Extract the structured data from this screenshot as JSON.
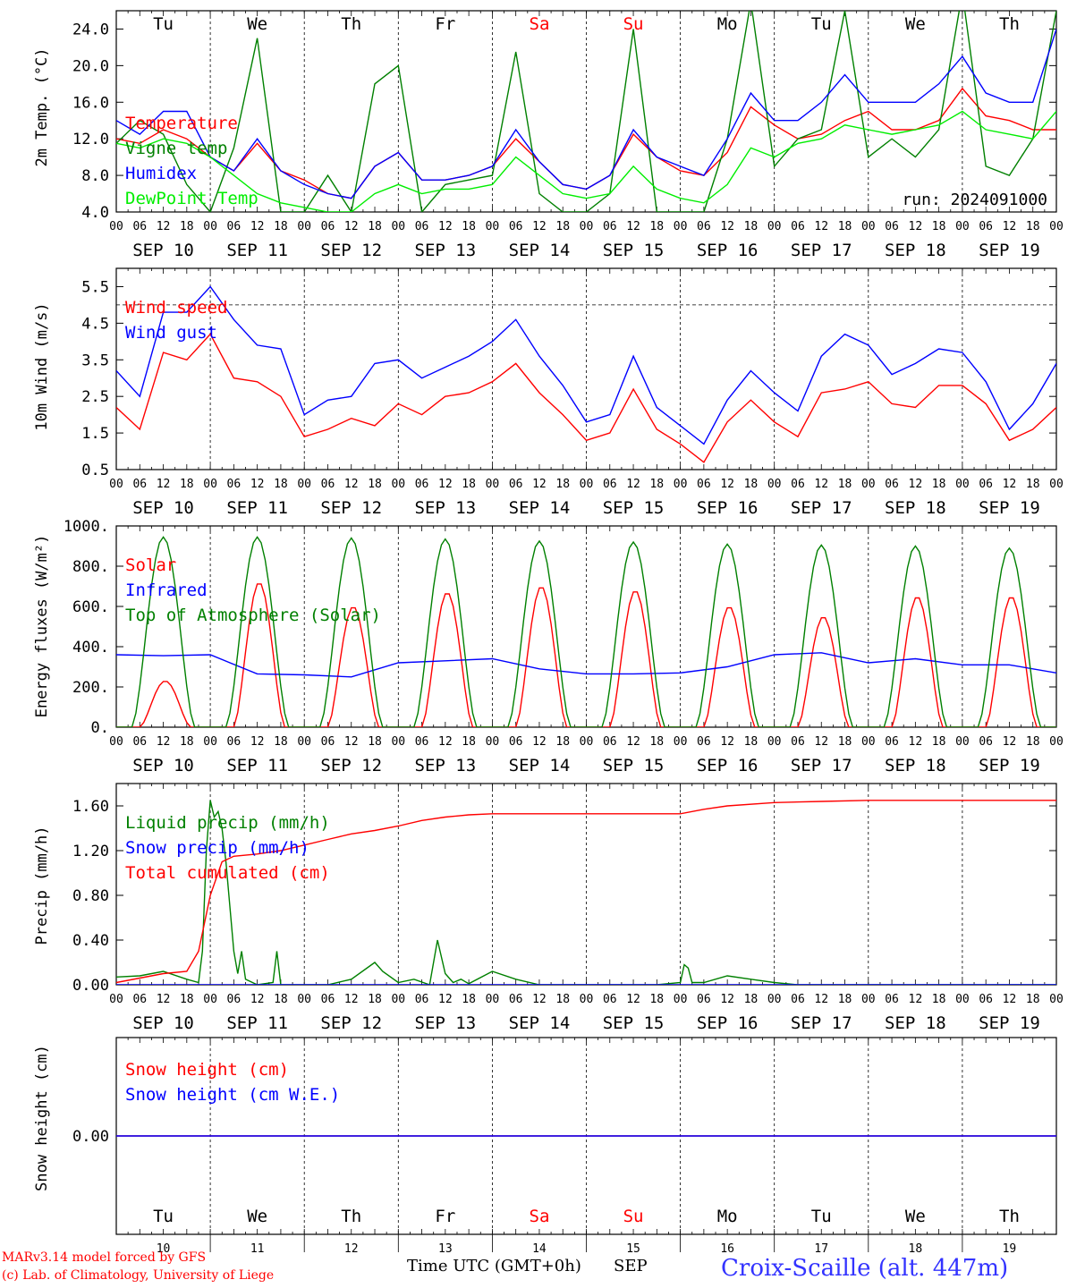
{
  "days": [
    {
      "abbr": "Tu",
      "date": "SEP 10",
      "num": "10",
      "weekend": false
    },
    {
      "abbr": "We",
      "date": "SEP 11",
      "num": "11",
      "weekend": false
    },
    {
      "abbr": "Th",
      "date": "SEP 12",
      "num": "12",
      "weekend": false
    },
    {
      "abbr": "Fr",
      "date": "SEP 13",
      "num": "13",
      "weekend": false
    },
    {
      "abbr": "Sa",
      "date": "SEP 14",
      "num": "14",
      "weekend": true
    },
    {
      "abbr": "Su",
      "date": "SEP 15",
      "num": "15",
      "weekend": true
    },
    {
      "abbr": "Mo",
      "date": "SEP 16",
      "num": "16",
      "weekend": false
    },
    {
      "abbr": "Tu",
      "date": "SEP 17",
      "num": "17",
      "weekend": false
    },
    {
      "abbr": "We",
      "date": "SEP 18",
      "num": "18",
      "weekend": false
    },
    {
      "abbr": "Th",
      "date": "SEP 19",
      "num": "19",
      "weekend": false
    }
  ],
  "hour_ticks": [
    "00",
    "06",
    "12",
    "18"
  ],
  "colors": {
    "red": "#ff0000",
    "green": "#008000",
    "blue": "#0000ff",
    "lightgreen": "#00ee00",
    "purple": "#800080",
    "weekend": "#ff0000"
  },
  "footer": {
    "model": "MARv3.14 model forced by GFS",
    "lab": "(c) Lab. of Climatology, University of Liege",
    "xlabel": "Time UTC (GMT+0h)",
    "month": "SEP",
    "station": "Croix-Scaille (alt. 447m)"
  },
  "chart_data": [
    {
      "type": "line",
      "ylabel": "2m Temp. (°C)",
      "ylim": [
        4,
        26
      ],
      "yticks": [
        4.0,
        8.0,
        12.0,
        16.0,
        20.0,
        24.0
      ],
      "ytick_labels": [
        "4.0",
        "8.0",
        "12.0",
        "16.0",
        "20.0",
        "24.0"
      ],
      "annotation": "run: 2024091000",
      "series": [
        {
          "name": "Temperature",
          "color": "red",
          "x": [
            0,
            6,
            12,
            18,
            24,
            30,
            36,
            42,
            48,
            54,
            60,
            66,
            72,
            78,
            84,
            90,
            96,
            102,
            108,
            114,
            120,
            126,
            132,
            138,
            144,
            150,
            156,
            162,
            168,
            174,
            180,
            186,
            192,
            198,
            204,
            210,
            216,
            222,
            228,
            234,
            240
          ],
          "y": [
            12,
            11.5,
            13,
            12,
            10,
            8.5,
            11.5,
            8.5,
            7.5,
            6,
            5.5,
            9,
            10.5,
            7.5,
            7.5,
            8,
            9,
            12,
            9.5,
            7,
            6.5,
            8,
            12.5,
            10,
            8.5,
            8,
            10.5,
            15.5,
            13.5,
            12,
            12.5,
            14,
            15,
            13,
            13,
            14,
            17.5,
            14.5,
            14,
            13,
            13
          ]
        },
        {
          "name": "Vigne temp",
          "color": "green",
          "x": [
            0,
            6,
            12,
            18,
            24,
            30,
            36,
            42,
            48,
            54,
            60,
            66,
            72,
            78,
            84,
            90,
            96,
            102,
            108,
            114,
            120,
            126,
            132,
            138,
            144,
            150,
            156,
            162,
            168,
            174,
            180,
            186,
            192,
            198,
            204,
            210,
            216,
            222,
            228,
            234,
            240
          ],
          "y": [
            11.5,
            14,
            12.5,
            7,
            4,
            11,
            23,
            4,
            4,
            8,
            4,
            18,
            20,
            4,
            7,
            7.5,
            8,
            21.5,
            6,
            4,
            4,
            6,
            24,
            4,
            4,
            4,
            12,
            27,
            9,
            12,
            13,
            26,
            10,
            12,
            10,
            13,
            28,
            9,
            8,
            12,
            26
          ]
        },
        {
          "name": "Humidex",
          "color": "blue",
          "x": [
            0,
            6,
            12,
            18,
            24,
            30,
            36,
            42,
            48,
            54,
            60,
            66,
            72,
            78,
            84,
            90,
            96,
            102,
            108,
            114,
            120,
            126,
            132,
            138,
            144,
            150,
            156,
            162,
            168,
            174,
            180,
            186,
            192,
            198,
            204,
            210,
            216,
            222,
            228,
            234,
            240
          ],
          "y": [
            14,
            12.5,
            15,
            15,
            10,
            8.5,
            12,
            8.5,
            7,
            6,
            5.5,
            9,
            10.5,
            7.5,
            7.5,
            8,
            9,
            13,
            9.5,
            7,
            6.5,
            8,
            13,
            10,
            9,
            8,
            12,
            17,
            14,
            14,
            16,
            19,
            16,
            16,
            16,
            18,
            21,
            17,
            16,
            16,
            24
          ]
        },
        {
          "name": "DewPoint Temp",
          "color": "lightgreen",
          "x": [
            0,
            6,
            12,
            18,
            24,
            30,
            36,
            42,
            48,
            54,
            60,
            66,
            72,
            78,
            84,
            90,
            96,
            102,
            108,
            114,
            120,
            126,
            132,
            138,
            144,
            150,
            156,
            162,
            168,
            174,
            180,
            186,
            192,
            198,
            204,
            210,
            216,
            222,
            228,
            234,
            240
          ],
          "y": [
            11.5,
            11,
            12,
            11.5,
            10,
            8,
            6,
            5,
            4.5,
            4,
            4,
            6,
            7,
            6,
            6.5,
            6.5,
            7,
            10,
            8,
            6,
            5.5,
            6,
            9,
            6.5,
            5.5,
            5,
            7,
            11,
            10,
            11.5,
            12,
            13.5,
            13,
            12.5,
            13,
            13.5,
            15,
            13,
            12.5,
            12,
            15
          ]
        }
      ]
    },
    {
      "type": "line",
      "ylabel": "10m Wind (m/s)",
      "ylim": [
        0.5,
        6
      ],
      "yticks": [
        0.5,
        1.5,
        2.5,
        3.5,
        4.5,
        5.5
      ],
      "ytick_labels": [
        "0.5",
        "1.5",
        "2.5",
        "3.5",
        "4.5",
        "5.5"
      ],
      "ref_line": 5.0,
      "series": [
        {
          "name": "Wind speed",
          "color": "red",
          "x": [
            0,
            6,
            12,
            18,
            24,
            30,
            36,
            42,
            48,
            54,
            60,
            66,
            72,
            78,
            84,
            90,
            96,
            102,
            108,
            114,
            120,
            126,
            132,
            138,
            144,
            150,
            156,
            162,
            168,
            174,
            180,
            186,
            192,
            198,
            204,
            210,
            216,
            222,
            228,
            234,
            240
          ],
          "y": [
            2.2,
            1.6,
            3.7,
            3.5,
            4.2,
            3.0,
            2.9,
            2.5,
            1.4,
            1.6,
            1.9,
            1.7,
            2.3,
            2.0,
            2.5,
            2.6,
            2.9,
            3.4,
            2.6,
            2.0,
            1.3,
            1.5,
            2.7,
            1.6,
            1.2,
            0.7,
            1.8,
            2.4,
            1.8,
            1.4,
            2.6,
            2.7,
            2.9,
            2.3,
            2.2,
            2.8,
            2.8,
            2.3,
            1.3,
            1.6,
            2.2
          ]
        },
        {
          "name": "Wind gust",
          "color": "blue",
          "x": [
            0,
            6,
            12,
            18,
            24,
            30,
            36,
            42,
            48,
            54,
            60,
            66,
            72,
            78,
            84,
            90,
            96,
            102,
            108,
            114,
            120,
            126,
            132,
            138,
            144,
            150,
            156,
            162,
            168,
            174,
            180,
            186,
            192,
            198,
            204,
            210,
            216,
            222,
            228,
            234,
            240
          ],
          "y": [
            3.2,
            2.5,
            4.8,
            4.8,
            5.5,
            4.6,
            3.9,
            3.8,
            2.0,
            2.4,
            2.5,
            3.4,
            3.5,
            3.0,
            3.3,
            3.6,
            4.0,
            4.6,
            3.6,
            2.8,
            1.8,
            2.0,
            3.6,
            2.2,
            1.7,
            1.2,
            2.4,
            3.2,
            2.6,
            2.1,
            3.6,
            4.2,
            3.9,
            3.1,
            3.4,
            3.8,
            3.7,
            2.9,
            1.6,
            2.3,
            3.4
          ]
        }
      ]
    },
    {
      "type": "line",
      "ylabel": "Energy fluxes (W/m²)",
      "ylim": [
        0,
        1000
      ],
      "yticks": [
        0,
        200,
        400,
        600,
        800,
        1000
      ],
      "ytick_labels": [
        "0.",
        "200.",
        "400.",
        "600.",
        "800.",
        "1000."
      ],
      "series": [
        {
          "name": "Solar",
          "color": "red",
          "peaks": [
            230,
            720,
            600,
            670,
            700,
            680,
            600,
            550,
            650,
            650
          ]
        },
        {
          "name": "Infrared",
          "color": "blue",
          "x": [
            0,
            12,
            24,
            36,
            48,
            60,
            72,
            84,
            96,
            108,
            120,
            132,
            144,
            156,
            168,
            180,
            192,
            204,
            216,
            228,
            240
          ],
          "y": [
            360,
            355,
            360,
            265,
            260,
            250,
            320,
            330,
            340,
            290,
            265,
            265,
            270,
            300,
            360,
            370,
            320,
            340,
            310,
            310,
            270
          ]
        },
        {
          "name": "Top of Atmosphere (Solar)",
          "color": "green",
          "peaks": [
            945,
            945,
            940,
            935,
            925,
            920,
            910,
            905,
            900,
            890
          ]
        }
      ]
    },
    {
      "type": "line",
      "ylabel": "Precip (mm/h)",
      "ylim": [
        0,
        1.8
      ],
      "yticks": [
        0,
        0.4,
        0.8,
        1.2,
        1.6
      ],
      "ytick_labels": [
        "0.00",
        "0.40",
        "0.80",
        "1.20",
        "1.60"
      ],
      "series": [
        {
          "name": "Liquid precip (mm/h)",
          "color": "green",
          "x": [
            0,
            6,
            12,
            18,
            21,
            22,
            23,
            24,
            25,
            26,
            27,
            28,
            29,
            30,
            31,
            32,
            33,
            36,
            40,
            41,
            42,
            48,
            54,
            60,
            66,
            68,
            72,
            76,
            80,
            82,
            84,
            86,
            88,
            90,
            96,
            102,
            108,
            114,
            120,
            126,
            132,
            138,
            144,
            145,
            146,
            147,
            150,
            156,
            162,
            168,
            174,
            180,
            186,
            192,
            198,
            204,
            210,
            216,
            222,
            228,
            234,
            240
          ],
          "y": [
            0.07,
            0.08,
            0.12,
            0.05,
            0.02,
            0.3,
            1.2,
            1.65,
            1.5,
            1.55,
            1.4,
            1.1,
            0.7,
            0.3,
            0.1,
            0.3,
            0.05,
            0.0,
            0.02,
            0.3,
            0.0,
            0.0,
            0.0,
            0.05,
            0.2,
            0.12,
            0.02,
            0.05,
            0.0,
            0.4,
            0.1,
            0.02,
            0.05,
            0.01,
            0.12,
            0.05,
            0.0,
            0.0,
            0.0,
            0.0,
            0.0,
            0.0,
            0.02,
            0.18,
            0.15,
            0.02,
            0.02,
            0.08,
            0.05,
            0.02,
            0.0,
            0.0,
            0.0,
            0.0,
            0.0,
            0.0,
            0.0,
            0.0,
            0.0,
            0.0,
            0.0,
            0.0
          ]
        },
        {
          "name": "Snow precip (mm/h)",
          "color": "blue",
          "x": [
            0,
            240
          ],
          "y": [
            0,
            0
          ]
        },
        {
          "name": "Total cumulated (cm)",
          "color": "red",
          "x": [
            0,
            6,
            12,
            18,
            21,
            24,
            27,
            30,
            36,
            42,
            48,
            54,
            60,
            66,
            72,
            78,
            84,
            90,
            96,
            102,
            108,
            114,
            120,
            132,
            144,
            150,
            156,
            168,
            180,
            192,
            204,
            216,
            228,
            240
          ],
          "y": [
            0.02,
            0.06,
            0.1,
            0.12,
            0.3,
            0.8,
            1.1,
            1.15,
            1.17,
            1.2,
            1.25,
            1.3,
            1.35,
            1.38,
            1.42,
            1.47,
            1.5,
            1.52,
            1.53,
            1.53,
            1.53,
            1.53,
            1.53,
            1.53,
            1.53,
            1.57,
            1.6,
            1.63,
            1.64,
            1.65,
            1.65,
            1.65,
            1.65,
            1.65
          ]
        }
      ]
    },
    {
      "type": "line",
      "ylabel": "Snow height (cm)",
      "ylim": [
        -1,
        1
      ],
      "yticks": [
        0
      ],
      "ytick_labels": [
        "0.00"
      ],
      "series": [
        {
          "name": "Snow height (cm)",
          "color": "red",
          "x": [
            0,
            240
          ],
          "y": [
            0,
            0
          ]
        },
        {
          "name": "Snow height (cm W.E.)",
          "color": "blue",
          "x": [
            0,
            240
          ],
          "y": [
            0,
            0
          ]
        }
      ]
    }
  ]
}
